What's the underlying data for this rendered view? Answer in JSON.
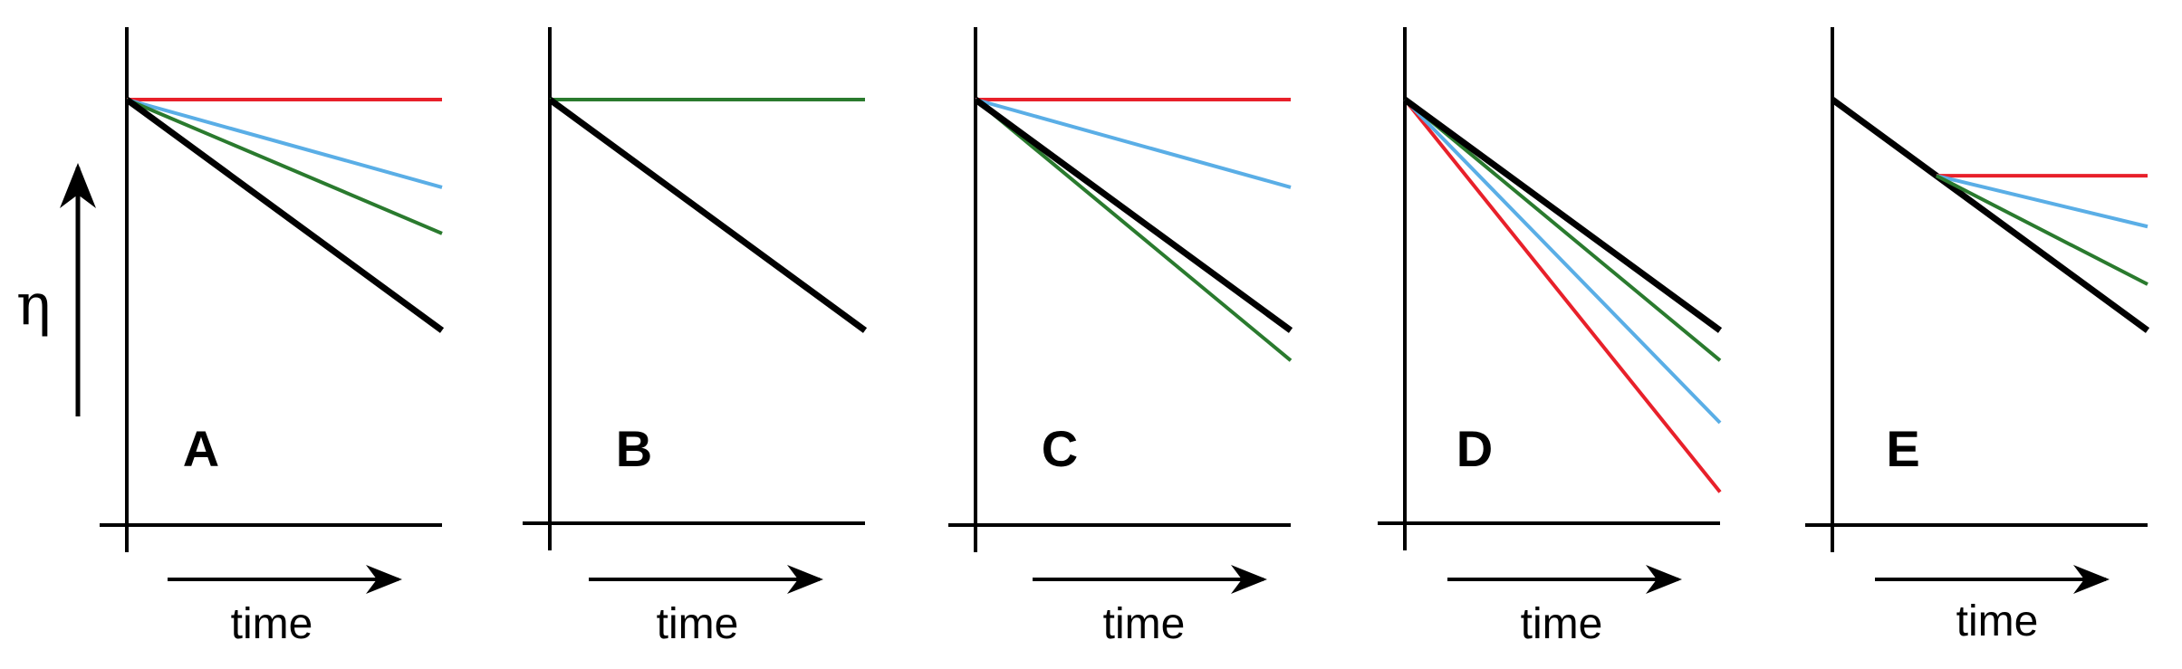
{
  "figure": {
    "y_axis_symbol": "η",
    "x_axis_label": "time",
    "colors": {
      "black": "#000000",
      "red": "#e8202a",
      "blue": "#5aaee6",
      "green": "#2a7a2e"
    },
    "panels": [
      {
        "letter": "A",
        "lines": [
          {
            "color": "red",
            "start": [
              0,
              1.0
            ],
            "end": [
              1,
              1.0
            ]
          },
          {
            "color": "blue",
            "start": [
              0,
              1.0
            ],
            "end": [
              1,
              0.62
            ]
          },
          {
            "color": "green",
            "start": [
              0,
              1.0
            ],
            "end": [
              1,
              0.42
            ]
          },
          {
            "color": "black",
            "start": [
              0,
              1.0
            ],
            "end": [
              1,
              0.0
            ]
          }
        ]
      },
      {
        "letter": "B",
        "lines": [
          {
            "color": "green",
            "start": [
              0,
              1.0
            ],
            "end": [
              1,
              1.0
            ]
          },
          {
            "color": "black",
            "start": [
              0,
              1.0
            ],
            "end": [
              1,
              0.0
            ]
          }
        ]
      },
      {
        "letter": "C",
        "lines": [
          {
            "color": "red",
            "start": [
              0,
              1.0
            ],
            "end": [
              1,
              1.0
            ]
          },
          {
            "color": "blue",
            "start": [
              0,
              1.0
            ],
            "end": [
              1,
              0.62
            ]
          },
          {
            "color": "green",
            "start": [
              0,
              1.0
            ],
            "end": [
              1,
              -0.13
            ]
          },
          {
            "color": "black",
            "start": [
              0,
              1.0
            ],
            "end": [
              1,
              0.0
            ]
          }
        ]
      },
      {
        "letter": "D",
        "lines": [
          {
            "color": "red",
            "start": [
              0,
              1.0
            ],
            "end": [
              1,
              -0.7
            ]
          },
          {
            "color": "blue",
            "start": [
              0,
              1.0
            ],
            "end": [
              1,
              -0.4
            ]
          },
          {
            "color": "green",
            "start": [
              0,
              1.0
            ],
            "end": [
              1,
              -0.13
            ]
          },
          {
            "color": "black",
            "start": [
              0,
              1.0
            ],
            "end": [
              1,
              0.0
            ]
          }
        ]
      },
      {
        "letter": "E",
        "lines": [
          {
            "color": "black",
            "start": [
              0,
              1.0
            ],
            "end": [
              1,
              0.0
            ]
          },
          {
            "color": "red",
            "start": [
              0.33,
              0.67
            ],
            "end": [
              1,
              0.67
            ]
          },
          {
            "color": "blue",
            "start": [
              0.33,
              0.67
            ],
            "end": [
              1,
              0.45
            ]
          },
          {
            "color": "green",
            "start": [
              0.33,
              0.67
            ],
            "end": [
              1,
              0.2
            ]
          }
        ]
      }
    ]
  }
}
